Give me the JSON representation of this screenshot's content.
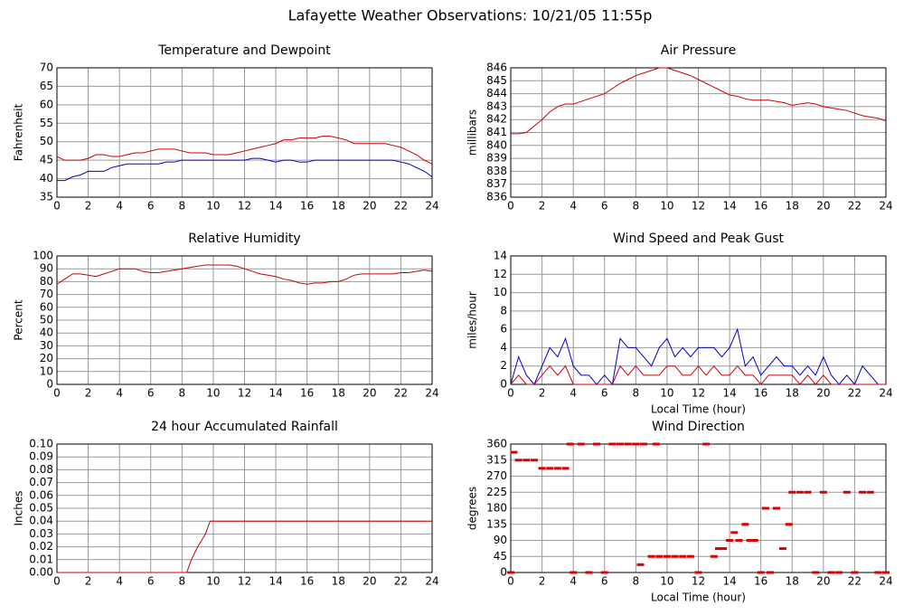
{
  "title": "Lafayette Weather Observations: 10/21/05 11:55p",
  "chart_data": [
    {
      "type": "line",
      "title": "Temperature and Dewpoint",
      "ylabel": "Fahrenheit",
      "grid": true,
      "xlim": [
        0,
        24
      ],
      "ylim": [
        35,
        70
      ],
      "xticks": [
        0,
        2,
        4,
        6,
        8,
        10,
        12,
        14,
        16,
        18,
        20,
        22,
        24
      ],
      "yticks": [
        35,
        40,
        45,
        50,
        55,
        60,
        65,
        70
      ],
      "x": [
        0,
        0.5,
        1,
        1.5,
        2,
        2.5,
        3,
        3.5,
        4,
        4.5,
        5,
        5.5,
        6,
        6.5,
        7,
        7.5,
        8,
        8.5,
        9,
        9.5,
        10,
        10.5,
        11,
        11.5,
        12,
        12.5,
        13,
        13.5,
        14,
        14.5,
        15,
        15.5,
        16,
        16.5,
        17,
        17.5,
        18,
        18.5,
        19,
        19.5,
        20,
        20.5,
        21,
        21.5,
        22,
        22.5,
        23,
        23.5,
        24
      ],
      "series": [
        {
          "color": "#cc0000",
          "values": [
            46,
            45,
            45,
            45,
            45.5,
            46.5,
            46.5,
            46,
            46,
            46.5,
            47,
            47,
            47.5,
            48,
            48,
            48,
            47.5,
            47,
            47,
            47,
            46.5,
            46.5,
            46.5,
            47,
            47.5,
            48,
            48.5,
            49,
            49.5,
            50.5,
            50.5,
            51,
            51,
            51,
            51.5,
            51.5,
            51,
            50.5,
            49.5,
            49.5,
            49.5,
            49.5,
            49.5,
            49,
            48.5,
            47.5,
            46.5,
            45,
            44
          ]
        },
        {
          "color": "#0000cc",
          "values": [
            39.5,
            39.5,
            40.5,
            41,
            42,
            42,
            42,
            43,
            43.5,
            44,
            44,
            44,
            44,
            44,
            44.5,
            44.5,
            45,
            45,
            45,
            45,
            45,
            45,
            45,
            45,
            45,
            45.5,
            45.5,
            45,
            44.5,
            45,
            45,
            44.5,
            44.5,
            45,
            45,
            45,
            45,
            45,
            45,
            45,
            45,
            45,
            45,
            45,
            44.5,
            44,
            43,
            42,
            40.5
          ]
        }
      ]
    },
    {
      "type": "line",
      "title": "Air Pressure",
      "ylabel": "millibars",
      "grid": true,
      "xlim": [
        0,
        24
      ],
      "ylim": [
        836,
        846
      ],
      "xticks": [
        0,
        2,
        4,
        6,
        8,
        10,
        12,
        14,
        16,
        18,
        20,
        22,
        24
      ],
      "yticks": [
        836,
        837,
        838,
        839,
        840,
        841,
        842,
        843,
        844,
        845,
        846
      ],
      "x": [
        0,
        0.5,
        1,
        1.5,
        2,
        2.5,
        3,
        3.5,
        4,
        4.5,
        5,
        5.5,
        6,
        6.5,
        7,
        7.5,
        8,
        8.5,
        9,
        9.5,
        10,
        10.5,
        11,
        11.5,
        12,
        12.5,
        13,
        13.5,
        14,
        14.5,
        15,
        15.5,
        16,
        16.5,
        17,
        17.5,
        18,
        18.5,
        19,
        19.5,
        20,
        20.5,
        21,
        21.5,
        22,
        22.5,
        23,
        23.5,
        24
      ],
      "series": [
        {
          "color": "#cc0000",
          "values": [
            840.9,
            840.9,
            841,
            841.5,
            842,
            842.6,
            843,
            843.2,
            843.2,
            843.4,
            843.6,
            843.8,
            844,
            844.4,
            844.8,
            845.1,
            845.4,
            845.6,
            845.8,
            846,
            846,
            845.8,
            845.6,
            845.4,
            845.1,
            844.8,
            844.5,
            844.2,
            843.9,
            843.8,
            843.6,
            843.5,
            843.5,
            843.5,
            843.4,
            843.3,
            843.1,
            843.2,
            843.3,
            843.2,
            843,
            842.9,
            842.8,
            842.7,
            842.5,
            842.3,
            842.2,
            842.1,
            841.9
          ]
        }
      ]
    },
    {
      "type": "line",
      "title": "Relative Humidity",
      "ylabel": "Percent",
      "grid": true,
      "xlim": [
        0,
        24
      ],
      "ylim": [
        0,
        100
      ],
      "xticks": [
        0,
        2,
        4,
        6,
        8,
        10,
        12,
        14,
        16,
        18,
        20,
        22,
        24
      ],
      "yticks": [
        0,
        10,
        20,
        30,
        40,
        50,
        60,
        70,
        80,
        90,
        100
      ],
      "x": [
        0,
        0.5,
        1,
        1.5,
        2,
        2.5,
        3,
        3.5,
        4,
        4.5,
        5,
        5.5,
        6,
        6.5,
        7,
        7.5,
        8,
        8.5,
        9,
        9.5,
        10,
        10.5,
        11,
        11.5,
        12,
        12.5,
        13,
        13.5,
        14,
        14.5,
        15,
        15.5,
        16,
        16.5,
        17,
        17.5,
        18,
        18.5,
        19,
        19.5,
        20,
        20.5,
        21,
        21.5,
        22,
        22.5,
        23,
        23.5,
        24
      ],
      "series": [
        {
          "color": "#cc0000",
          "values": [
            78,
            82,
            86,
            86,
            85,
            84,
            86,
            88,
            90,
            90,
            90,
            88,
            87,
            87,
            88,
            89,
            90,
            91,
            92,
            93,
            93,
            93,
            93,
            92,
            90,
            88,
            86,
            85,
            84,
            82,
            81,
            79,
            78,
            79,
            79,
            80,
            80,
            82,
            85,
            86,
            86,
            86,
            86,
            86,
            87,
            87,
            88,
            89,
            88
          ]
        }
      ]
    },
    {
      "type": "line",
      "title": "Wind Speed and Peak Gust",
      "ylabel": "miles/hour",
      "xlabel": "Local Time (hour)",
      "grid": true,
      "xlim": [
        0,
        24
      ],
      "ylim": [
        0,
        14
      ],
      "xticks": [
        0,
        2,
        4,
        6,
        8,
        10,
        12,
        14,
        16,
        18,
        20,
        22,
        24
      ],
      "yticks": [
        0,
        2,
        4,
        6,
        8,
        10,
        12,
        14
      ],
      "x": [
        0,
        0.5,
        1,
        1.5,
        2,
        2.5,
        3,
        3.5,
        4,
        4.5,
        5,
        5.5,
        6,
        6.5,
        7,
        7.5,
        8,
        8.5,
        9,
        9.5,
        10,
        10.5,
        11,
        11.5,
        12,
        12.5,
        13,
        13.5,
        14,
        14.5,
        15,
        15.5,
        16,
        16.5,
        17,
        17.5,
        18,
        18.5,
        19,
        19.5,
        20,
        20.5,
        21,
        21.5,
        22,
        22.5,
        23,
        23.5,
        24
      ],
      "series": [
        {
          "color": "#0000cc",
          "values": [
            0,
            3,
            1,
            0,
            2,
            4,
            3,
            5,
            2,
            1,
            1,
            0,
            1,
            0,
            5,
            4,
            4,
            3,
            2,
            4,
            5,
            3,
            4,
            3,
            4,
            4,
            4,
            3,
            4,
            6,
            2,
            3,
            1,
            2,
            3,
            2,
            2,
            1,
            2,
            1,
            3,
            1,
            0,
            1,
            0,
            2,
            1,
            0,
            0
          ]
        },
        {
          "color": "#cc0000",
          "values": [
            0,
            1,
            0,
            0,
            1,
            2,
            1,
            2,
            0,
            0,
            0,
            0,
            0,
            0,
            2,
            1,
            2,
            1,
            1,
            1,
            2,
            2,
            1,
            1,
            2,
            1,
            2,
            1,
            1,
            2,
            1,
            1,
            0,
            1,
            1,
            1,
            1,
            0,
            1,
            0,
            1,
            0,
            0,
            0,
            0,
            0,
            0,
            0,
            0
          ]
        }
      ]
    },
    {
      "type": "line",
      "title": "24 hour Accumulated Rainfall",
      "ylabel": "Inches",
      "grid": true,
      "xlim": [
        0,
        24
      ],
      "ylim": [
        0,
        0.1
      ],
      "xticks": [
        0,
        2,
        4,
        6,
        8,
        10,
        12,
        14,
        16,
        18,
        20,
        22,
        24
      ],
      "yticks": [
        {
          "value": 0,
          "label": "0.00"
        },
        {
          "value": 0.01,
          "label": "0.01"
        },
        {
          "value": 0.02,
          "label": "0.02"
        },
        {
          "value": 0.03,
          "label": "0.03"
        },
        {
          "value": 0.04,
          "label": "0.04"
        },
        {
          "value": 0.05,
          "label": "0.05"
        },
        {
          "value": 0.06,
          "label": "0.06"
        },
        {
          "value": 0.07,
          "label": "0.07"
        },
        {
          "value": 0.08,
          "label": "0.08"
        },
        {
          "value": 0.09,
          "label": "0.09"
        },
        {
          "value": 0.1,
          "label": "0.10"
        }
      ],
      "x": [
        0,
        8.3,
        8.6,
        9,
        9.5,
        9.8,
        24
      ],
      "series": [
        {
          "color": "#cc0000",
          "values": [
            0,
            0,
            0.01,
            0.02,
            0.03,
            0.04,
            0.04
          ]
        }
      ]
    },
    {
      "type": "scatter",
      "title": "Wind Direction",
      "ylabel": "degrees",
      "xlabel": "Local Time (hour)",
      "grid": true,
      "xlim": [
        0,
        24
      ],
      "ylim": [
        0,
        360
      ],
      "xticks": [
        0,
        2,
        4,
        6,
        8,
        10,
        12,
        14,
        16,
        18,
        20,
        22,
        24
      ],
      "yticks": [
        0,
        45,
        90,
        135,
        180,
        225,
        270,
        315,
        360
      ],
      "x": [
        0,
        0.2,
        0.5,
        1,
        1.5,
        2,
        2.5,
        3,
        3.5,
        3.8,
        4,
        4.5,
        5,
        5.5,
        6,
        6.5,
        7,
        7.5,
        8,
        8.3,
        8.5,
        9,
        9.3,
        9.5,
        10,
        10.5,
        11,
        11.5,
        12,
        12.5,
        13,
        13.3,
        13.6,
        14,
        14.3,
        14.6,
        15,
        15.3,
        15.6,
        16,
        16.3,
        16.6,
        17,
        17.4,
        17.8,
        18,
        18.5,
        19,
        19.5,
        20,
        20.5,
        21,
        21.5,
        22,
        22.5,
        23,
        23.5,
        24
      ],
      "series": [
        {
          "color": "#dd0000",
          "values": [
            0,
            337,
            315,
            315,
            315,
            292,
            292,
            292,
            292,
            360,
            0,
            360,
            0,
            360,
            0,
            360,
            360,
            360,
            360,
            22,
            360,
            45,
            360,
            45,
            45,
            45,
            45,
            45,
            0,
            360,
            45,
            67,
            67,
            90,
            112,
            90,
            135,
            90,
            90,
            0,
            180,
            0,
            180,
            67,
            135,
            225,
            225,
            225,
            0,
            225,
            0,
            0,
            225,
            0,
            225,
            225,
            0,
            0
          ]
        }
      ]
    }
  ]
}
